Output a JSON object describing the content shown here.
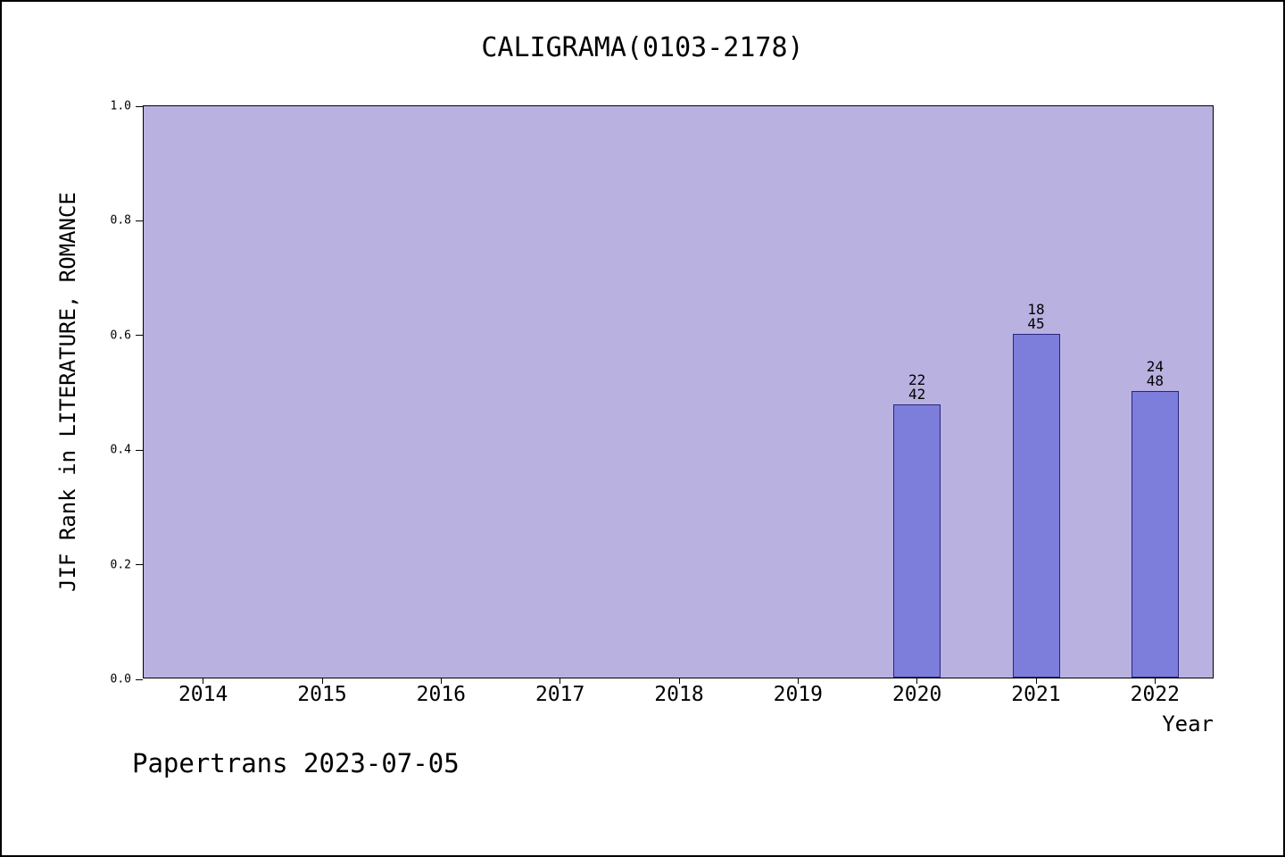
{
  "header": {
    "title": "CALIGRAMA(0103-2178)"
  },
  "footer": {
    "credit": "Papertrans 2023-07-05"
  },
  "chart_data": {
    "type": "bar",
    "title": "CALIGRAMA(0103-2178)",
    "xlabel": "Year",
    "ylabel": "JIF Rank in LITERATURE, ROMANCE",
    "categories": [
      "2014",
      "2015",
      "2016",
      "2017",
      "2018",
      "2019",
      "2020",
      "2021",
      "2022"
    ],
    "values": [
      null,
      null,
      null,
      null,
      null,
      null,
      0.476,
      0.6,
      0.5
    ],
    "annotations": [
      {
        "category": "2020",
        "lines": [
          "22",
          "42"
        ]
      },
      {
        "category": "2021",
        "lines": [
          "18",
          "45"
        ]
      },
      {
        "category": "2022",
        "lines": [
          "24",
          "48"
        ]
      }
    ],
    "ylim": [
      0,
      1
    ],
    "yticks": [
      "0.0",
      "0.2",
      "0.4",
      "0.6",
      "0.8",
      "1.0"
    ],
    "grid": false,
    "legend": false,
    "colors": {
      "plot_bg": "#b9b1e0",
      "bar_fill": "#7d7ddc",
      "bar_border": "#26267d",
      "spine": "#000000"
    }
  }
}
